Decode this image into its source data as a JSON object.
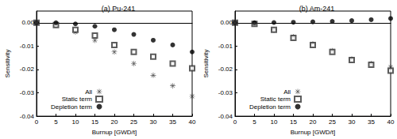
{
  "chart_data": [
    {
      "type": "scatter",
      "title": "(a) Pu-241",
      "x_label": "Burnup [GWD/t]",
      "y_label": "Sensitivity",
      "x": [
        0,
        5,
        10,
        15,
        20,
        25,
        30,
        35,
        40
      ],
      "series": [
        {
          "name": "All",
          "marker": "asterisk",
          "color": "#333333",
          "values": [
            0,
            -0.001,
            -0.004,
            -0.0075,
            -0.0125,
            -0.0175,
            -0.0225,
            -0.027,
            -0.0315
          ]
        },
        {
          "name": "Static term",
          "marker": "square_open",
          "color": "#333333",
          "values": [
            0,
            -0.001,
            -0.003,
            -0.0055,
            -0.0095,
            -0.0125,
            -0.0145,
            -0.0175,
            -0.0195
          ]
        },
        {
          "name": "Depletion term",
          "marker": "circle",
          "color": "#000000",
          "values": [
            0,
            0,
            -0.0005,
            -0.0015,
            -0.003,
            -0.005,
            -0.0075,
            -0.0095,
            -0.0125
          ]
        }
      ],
      "xlim": [
        0,
        40
      ],
      "xticks": [
        0,
        5,
        10,
        15,
        20,
        25,
        30,
        35,
        40
      ],
      "ylim": [
        -0.04,
        0.005
      ],
      "yticks": [
        {
          "value": -0.04,
          "label": "-0.04"
        },
        {
          "value": -0.03,
          "label": "-0.03"
        },
        {
          "value": -0.02,
          "label": "-0.02"
        },
        {
          "value": -0.01,
          "label": "-0.01"
        },
        {
          "value": 0,
          "label": "0.00"
        }
      ],
      "legend": "lower left",
      "grid": false
    },
    {
      "type": "scatter",
      "title": "(b) Am-241",
      "x_label": "Burnup [GWD/t]",
      "y_label": "Sensitivity",
      "x": [
        0,
        5,
        10,
        15,
        20,
        25,
        30,
        35,
        40
      ],
      "series": [
        {
          "name": "All",
          "marker": "asterisk",
          "color": "#333333",
          "values": [
            0,
            -0.0005,
            -0.003,
            -0.006,
            -0.009,
            -0.012,
            -0.0155,
            -0.0175,
            -0.019
          ]
        },
        {
          "name": "Static term",
          "marker": "square_open",
          "color": "#333333",
          "values": [
            0,
            -0.0005,
            -0.003,
            -0.0065,
            -0.0095,
            -0.0125,
            -0.016,
            -0.018,
            -0.0205
          ]
        },
        {
          "name": "Depletion term",
          "marker": "circle",
          "color": "#000000",
          "values": [
            0,
            0,
            0.0001,
            0.0002,
            0.0004,
            0.0006,
            0.0009,
            0.0013,
            0.0018
          ]
        }
      ],
      "xlim": [
        0,
        40
      ],
      "xticks": [
        0,
        5,
        10,
        15,
        20,
        25,
        30,
        35,
        40
      ],
      "ylim": [
        -0.04,
        0.005
      ],
      "yticks": [
        {
          "value": -0.04,
          "label": "-0.04"
        },
        {
          "value": -0.03,
          "label": "-0.03"
        },
        {
          "value": -0.02,
          "label": "-0.02"
        },
        {
          "value": -0.01,
          "label": "-0.01"
        },
        {
          "value": 0,
          "label": "0.00"
        }
      ],
      "legend": "lower left",
      "grid": false
    }
  ]
}
